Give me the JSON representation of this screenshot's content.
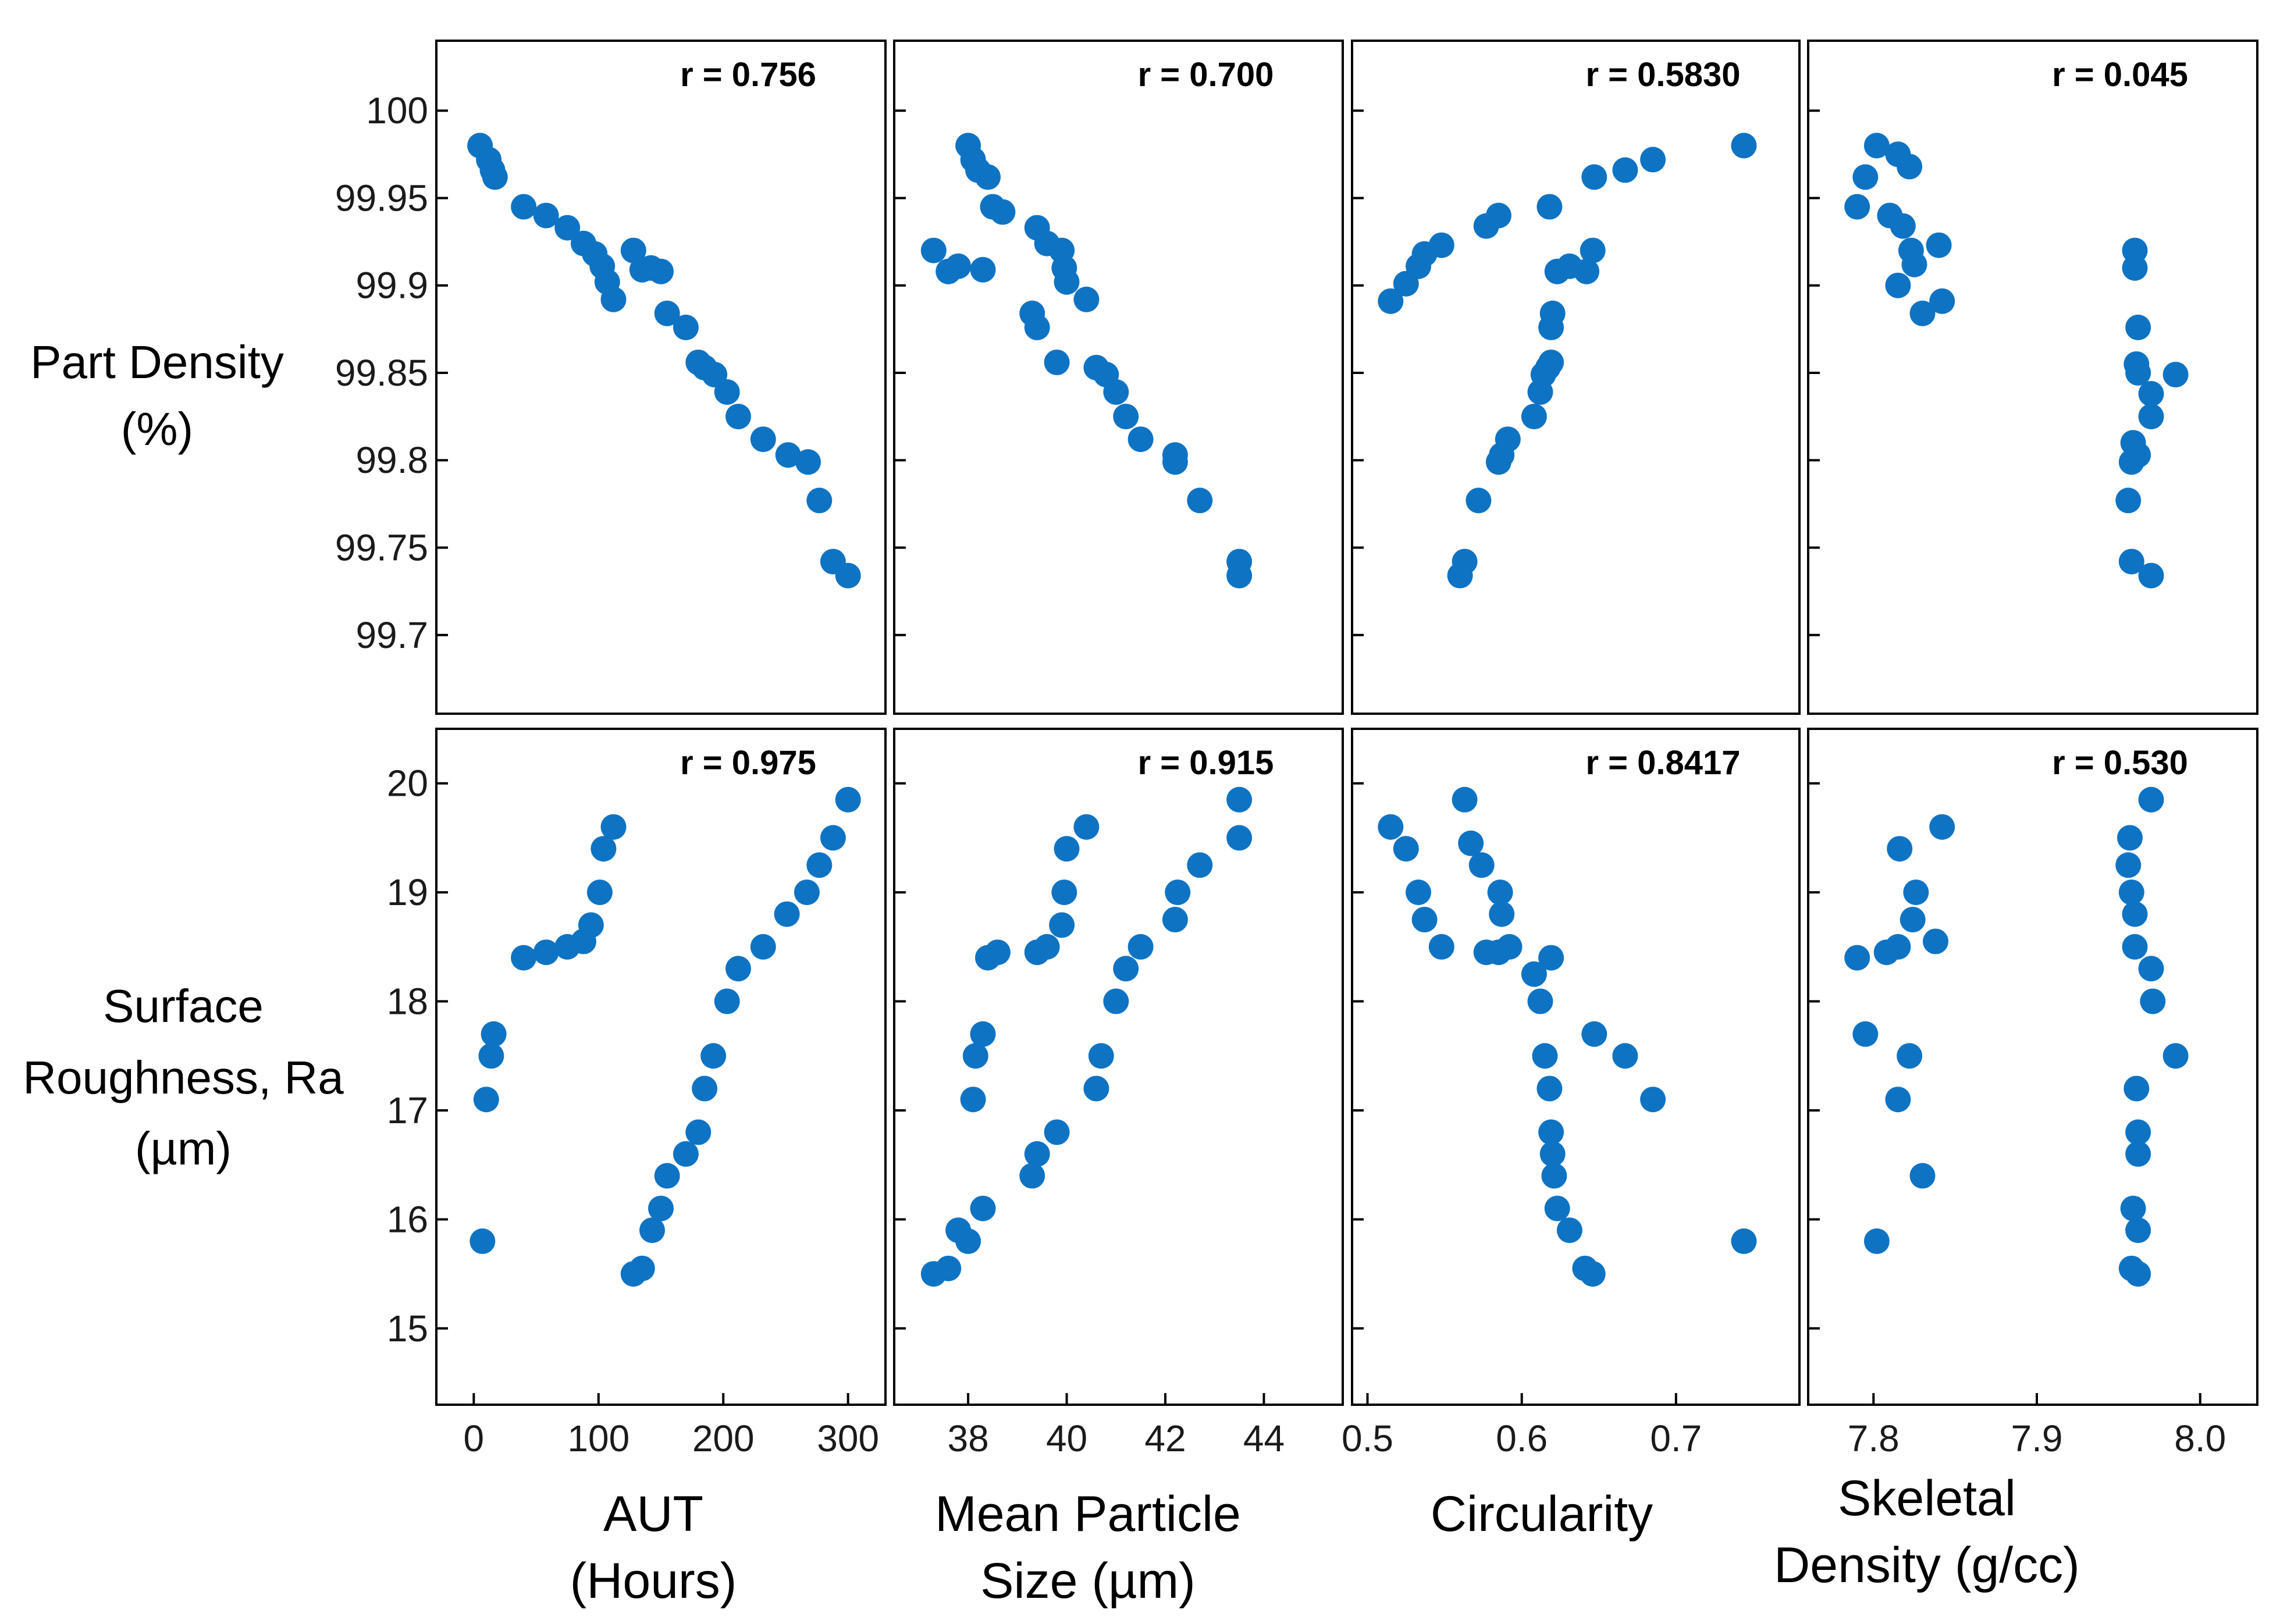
{
  "colors": {
    "marker": "#0f73c4",
    "axis": "#000000"
  },
  "row_labels": [
    [
      "Part Density",
      "(%)"
    ],
    [
      "Surface",
      "Roughness, Ra",
      "(µm)"
    ]
  ],
  "column_labels": [
    [
      "AUT",
      "(Hours)"
    ],
    [
      "Mean Particle",
      "Size (µm)"
    ],
    [
      "Circularity"
    ],
    [
      "Skeletal",
      "Density (g/cc)"
    ]
  ],
  "chart_data": {
    "type": "scatter",
    "title": "",
    "rows": [
      {
        "ylabel": "Part Density (%)",
        "ylim": [
          99.655,
          100.04
        ],
        "yticks": [
          99.7,
          99.75,
          99.8,
          99.85,
          99.9,
          99.95,
          100
        ],
        "ytick_labels": [
          "99.7",
          "99.75",
          "99.8",
          "99.85",
          "99.9",
          "99.95",
          "100"
        ]
      },
      {
        "ylabel": "Surface Roughness, Ra (µm)",
        "ylim": [
          14.3,
          20.5
        ],
        "yticks": [
          15,
          16,
          17,
          18,
          19,
          20
        ],
        "ytick_labels": [
          "15",
          "16",
          "17",
          "18",
          "19",
          "20"
        ]
      }
    ],
    "columns": [
      {
        "xlabel": "AUT (Hours)",
        "xlim": [
          -30,
          330
        ],
        "xticks": [
          0,
          100,
          200,
          300
        ],
        "xtick_labels": [
          "0",
          "100",
          "200",
          "300"
        ]
      },
      {
        "xlabel": "Mean Particle Size (µm)",
        "xlim": [
          36.5,
          45.6
        ],
        "xticks": [
          38,
          40,
          42,
          44
        ],
        "xtick_labels": [
          "38",
          "40",
          "42",
          "44"
        ]
      },
      {
        "xlabel": "Circularity",
        "xlim": [
          0.49,
          0.78
        ],
        "xticks": [
          0.5,
          0.6,
          0.7
        ],
        "xtick_labels": [
          "0.5",
          "0.6",
          "0.7"
        ]
      },
      {
        "xlabel": "Skeletal Density (g/cc)",
        "xlim": [
          7.76,
          8.035
        ],
        "xticks": [
          7.8,
          7.9,
          8.0
        ],
        "xtick_labels": [
          "7.8",
          "7.9",
          "8.0"
        ]
      }
    ],
    "panels": [
      {
        "row": 0,
        "col": 0,
        "r_label": "r = 0.756",
        "points": [
          [
            5,
            99.98
          ],
          [
            12,
            99.972
          ],
          [
            15,
            99.966
          ],
          [
            17,
            99.962
          ],
          [
            40,
            99.945
          ],
          [
            58,
            99.94
          ],
          [
            75,
            99.933
          ],
          [
            88,
            99.924
          ],
          [
            97,
            99.918
          ],
          [
            103,
            99.911
          ],
          [
            107,
            99.902
          ],
          [
            112,
            99.892
          ],
          [
            128,
            99.92
          ],
          [
            135,
            99.909
          ],
          [
            142,
            99.91
          ],
          [
            150,
            99.908
          ],
          [
            155,
            99.884
          ],
          [
            170,
            99.876
          ],
          [
            180,
            99.856
          ],
          [
            185,
            99.853
          ],
          [
            193,
            99.849
          ],
          [
            203,
            99.839
          ],
          [
            212,
            99.825
          ],
          [
            232,
            99.812
          ],
          [
            252,
            99.803
          ],
          [
            268,
            99.799
          ],
          [
            277,
            99.777
          ],
          [
            288,
            99.742
          ],
          [
            300,
            99.734
          ]
        ]
      },
      {
        "row": 0,
        "col": 1,
        "r_label": "r = 0.700",
        "points": [
          [
            37.3,
            99.92
          ],
          [
            37.6,
            99.908
          ],
          [
            37.8,
            99.911
          ],
          [
            38.0,
            99.98
          ],
          [
            38.1,
            99.972
          ],
          [
            38.2,
            99.966
          ],
          [
            38.3,
            99.909
          ],
          [
            38.4,
            99.962
          ],
          [
            38.5,
            99.945
          ],
          [
            38.7,
            99.942
          ],
          [
            39.3,
            99.884
          ],
          [
            39.4,
            99.876
          ],
          [
            39.4,
            99.933
          ],
          [
            39.6,
            99.924
          ],
          [
            39.8,
            99.856
          ],
          [
            39.9,
            99.92
          ],
          [
            39.95,
            99.91
          ],
          [
            40.0,
            99.902
          ],
          [
            40.4,
            99.892
          ],
          [
            40.6,
            99.853
          ],
          [
            40.8,
            99.849
          ],
          [
            41.0,
            99.839
          ],
          [
            41.2,
            99.825
          ],
          [
            41.5,
            99.812
          ],
          [
            42.2,
            99.803
          ],
          [
            42.2,
            99.799
          ],
          [
            42.7,
            99.777
          ],
          [
            43.5,
            99.742
          ],
          [
            43.5,
            99.734
          ]
        ]
      },
      {
        "row": 0,
        "col": 2,
        "r_label": "r = 0.5830",
        "points": [
          [
            0.515,
            99.891
          ],
          [
            0.525,
            99.901
          ],
          [
            0.533,
            99.911
          ],
          [
            0.537,
            99.918
          ],
          [
            0.548,
            99.923
          ],
          [
            0.577,
            99.934
          ],
          [
            0.585,
            99.94
          ],
          [
            0.56,
            99.734
          ],
          [
            0.563,
            99.742
          ],
          [
            0.572,
            99.777
          ],
          [
            0.585,
            99.799
          ],
          [
            0.587,
            99.803
          ],
          [
            0.591,
            99.812
          ],
          [
            0.608,
            99.825
          ],
          [
            0.612,
            99.839
          ],
          [
            0.614,
            99.849
          ],
          [
            0.617,
            99.853
          ],
          [
            0.619,
            99.856
          ],
          [
            0.619,
            99.876
          ],
          [
            0.62,
            99.884
          ],
          [
            0.618,
            99.945
          ],
          [
            0.623,
            99.908
          ],
          [
            0.631,
            99.911
          ],
          [
            0.642,
            99.908
          ],
          [
            0.646,
            99.92
          ],
          [
            0.647,
            99.962
          ],
          [
            0.667,
            99.966
          ],
          [
            0.685,
            99.972
          ],
          [
            0.744,
            99.98
          ]
        ]
      },
      {
        "row": 0,
        "col": 3,
        "r_label": "r = 0.045",
        "points": [
          [
            7.79,
            99.945
          ],
          [
            7.795,
            99.962
          ],
          [
            7.802,
            99.98
          ],
          [
            7.81,
            99.94
          ],
          [
            7.815,
            99.975
          ],
          [
            7.815,
            99.9
          ],
          [
            7.818,
            99.934
          ],
          [
            7.822,
            99.968
          ],
          [
            7.823,
            99.92
          ],
          [
            7.825,
            99.912
          ],
          [
            7.83,
            99.884
          ],
          [
            7.84,
            99.923
          ],
          [
            7.842,
            99.891
          ],
          [
            7.956,
            99.777
          ],
          [
            7.958,
            99.799
          ],
          [
            7.958,
            99.742
          ],
          [
            7.959,
            99.81
          ],
          [
            7.96,
            99.92
          ],
          [
            7.96,
            99.91
          ],
          [
            7.961,
            99.855
          ],
          [
            7.962,
            99.85
          ],
          [
            7.962,
            99.876
          ],
          [
            7.962,
            99.803
          ],
          [
            7.97,
            99.838
          ],
          [
            7.97,
            99.825
          ],
          [
            7.97,
            99.734
          ],
          [
            7.985,
            99.849
          ]
        ]
      },
      {
        "row": 1,
        "col": 0,
        "r_label": "r = 0.975",
        "points": [
          [
            7,
            15.8
          ],
          [
            10,
            17.1
          ],
          [
            14,
            17.5
          ],
          [
            16,
            17.7
          ],
          [
            40,
            18.4
          ],
          [
            58,
            18.45
          ],
          [
            75,
            18.5
          ],
          [
            88,
            18.55
          ],
          [
            94,
            18.7
          ],
          [
            101,
            19.0
          ],
          [
            104,
            19.4
          ],
          [
            112,
            19.6
          ],
          [
            128,
            15.5
          ],
          [
            135,
            15.55
          ],
          [
            143,
            15.9
          ],
          [
            150,
            16.1
          ],
          [
            155,
            16.4
          ],
          [
            170,
            16.6
          ],
          [
            180,
            16.8
          ],
          [
            185,
            17.2
          ],
          [
            192,
            17.5
          ],
          [
            203,
            18.0
          ],
          [
            212,
            18.3
          ],
          [
            232,
            18.5
          ],
          [
            251,
            18.8
          ],
          [
            267,
            19.0
          ],
          [
            277,
            19.25
          ],
          [
            288,
            19.5
          ],
          [
            300,
            19.85
          ]
        ]
      },
      {
        "row": 1,
        "col": 1,
        "r_label": "r = 0.915",
        "points": [
          [
            37.3,
            15.5
          ],
          [
            37.6,
            15.55
          ],
          [
            37.8,
            15.9
          ],
          [
            38.0,
            15.8
          ],
          [
            38.1,
            17.1
          ],
          [
            38.15,
            17.5
          ],
          [
            38.3,
            17.7
          ],
          [
            38.4,
            18.4
          ],
          [
            38.6,
            18.45
          ],
          [
            38.3,
            16.1
          ],
          [
            39.3,
            16.4
          ],
          [
            39.4,
            16.6
          ],
          [
            39.4,
            18.45
          ],
          [
            39.6,
            18.5
          ],
          [
            39.8,
            16.8
          ],
          [
            39.9,
            18.7
          ],
          [
            39.95,
            19.0
          ],
          [
            40.0,
            19.4
          ],
          [
            40.4,
            19.6
          ],
          [
            40.6,
            17.2
          ],
          [
            40.7,
            17.5
          ],
          [
            41.0,
            18.0
          ],
          [
            41.2,
            18.3
          ],
          [
            41.5,
            18.5
          ],
          [
            42.2,
            18.75
          ],
          [
            42.25,
            19.0
          ],
          [
            42.7,
            19.25
          ],
          [
            43.5,
            19.5
          ],
          [
            43.5,
            19.85
          ]
        ]
      },
      {
        "row": 1,
        "col": 2,
        "r_label": "r = 0.8417",
        "points": [
          [
            0.515,
            19.6
          ],
          [
            0.525,
            19.4
          ],
          [
            0.533,
            19.0
          ],
          [
            0.537,
            18.75
          ],
          [
            0.548,
            18.5
          ],
          [
            0.563,
            19.85
          ],
          [
            0.567,
            19.45
          ],
          [
            0.574,
            19.25
          ],
          [
            0.577,
            18.45
          ],
          [
            0.585,
            18.45
          ],
          [
            0.586,
            19.0
          ],
          [
            0.587,
            18.8
          ],
          [
            0.592,
            18.5
          ],
          [
            0.608,
            18.25
          ],
          [
            0.612,
            18.0
          ],
          [
            0.615,
            17.5
          ],
          [
            0.618,
            17.2
          ],
          [
            0.619,
            18.4
          ],
          [
            0.619,
            16.8
          ],
          [
            0.62,
            16.6
          ],
          [
            0.621,
            16.4
          ],
          [
            0.623,
            16.1
          ],
          [
            0.631,
            15.9
          ],
          [
            0.641,
            15.55
          ],
          [
            0.646,
            15.5
          ],
          [
            0.647,
            17.7
          ],
          [
            0.667,
            17.5
          ],
          [
            0.685,
            17.1
          ],
          [
            0.744,
            15.8
          ]
        ]
      },
      {
        "row": 1,
        "col": 3,
        "r_label": "r = 0.530",
        "points": [
          [
            7.79,
            18.4
          ],
          [
            7.795,
            17.7
          ],
          [
            7.802,
            15.8
          ],
          [
            7.808,
            18.45
          ],
          [
            7.815,
            18.5
          ],
          [
            7.815,
            17.1
          ],
          [
            7.816,
            19.4
          ],
          [
            7.822,
            17.5
          ],
          [
            7.824,
            18.75
          ],
          [
            7.826,
            19.0
          ],
          [
            7.83,
            16.4
          ],
          [
            7.838,
            18.55
          ],
          [
            7.842,
            19.6
          ],
          [
            7.956,
            19.25
          ],
          [
            7.957,
            19.5
          ],
          [
            7.958,
            19.0
          ],
          [
            7.958,
            15.55
          ],
          [
            7.959,
            16.1
          ],
          [
            7.96,
            18.5
          ],
          [
            7.96,
            18.8
          ],
          [
            7.961,
            17.2
          ],
          [
            7.962,
            16.8
          ],
          [
            7.962,
            16.6
          ],
          [
            7.962,
            15.9
          ],
          [
            7.962,
            15.5
          ],
          [
            7.97,
            19.85
          ],
          [
            7.97,
            18.3
          ],
          [
            7.971,
            18.0
          ],
          [
            7.985,
            17.5
          ]
        ]
      }
    ]
  }
}
